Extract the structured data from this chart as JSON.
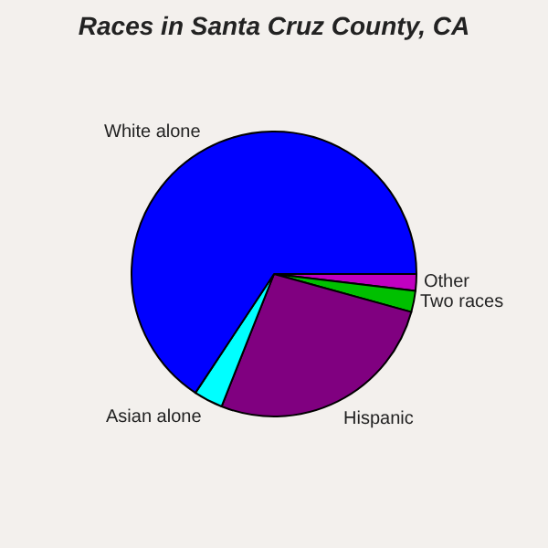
{
  "chart_data": {
    "type": "pie",
    "title": "Races in Santa Cruz County, CA",
    "categories": [
      "Other",
      "Two races",
      "Hispanic",
      "Asian alone",
      "White alone"
    ],
    "values": [
      1.9,
      2.4,
      26.7,
      3.3,
      65.7
    ],
    "colors": [
      "#c000c0",
      "#00c000",
      "#800080",
      "#00ffff",
      "#0000ff"
    ],
    "legend": false
  }
}
